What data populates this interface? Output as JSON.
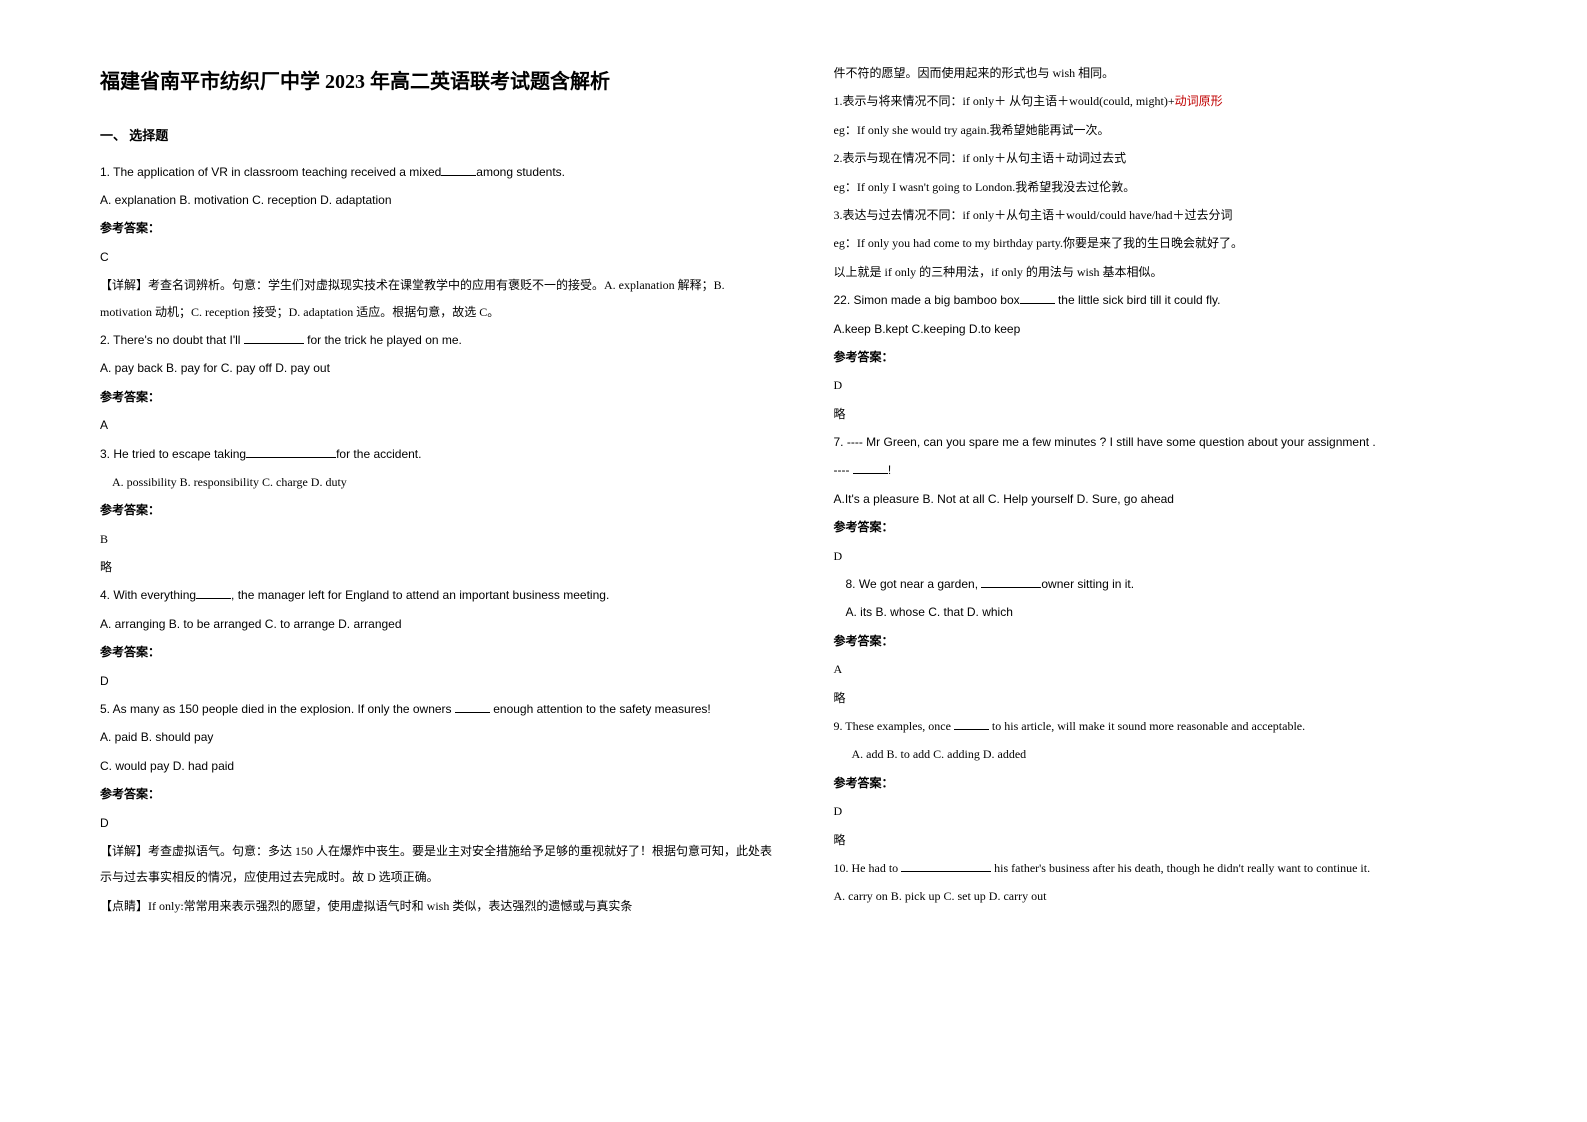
{
  "title": "福建省南平市纺织厂中学 2023 年高二英语联考试题含解析",
  "sectionHead": "一、 选择题",
  "left": {
    "q1": {
      "stem_pre": "1. The application of VR in classroom teaching received a mixed",
      "stem_post": "among students.",
      "opts": "A. explanation    B. motivation    C. reception    D. adaptation",
      "ansLabel": "参考答案：",
      "ans": "C",
      "expl": "【详解】考查名词辨析。句意：学生们对虚拟现实技术在课堂教学中的应用有褒贬不一的接受。A. explanation 解释；B. motivation 动机；C. reception 接受；D. adaptation 适应。根据句意，故选 C。"
    },
    "q2": {
      "stem_pre": "2. There's no doubt that I'll ",
      "stem_post": " for the trick he played on me.",
      "opts": "A. pay back    B. pay for  C. pay off  D. pay out",
      "ansLabel": "参考答案：",
      "ans": "A"
    },
    "q3": {
      "stem_pre": "3. He tried to escape taking",
      "stem_post": "for the accident.",
      "opts": "A. possibility    B. responsibility    C. charge    D. duty",
      "ansLabel": "参考答案：",
      "ans": "B",
      "omit": "略"
    },
    "q4": {
      "stem_pre": "4. With everything",
      "stem_post": ", the manager left for England to attend an important business meeting.",
      "opts": "A. arranging        B. to be arranged         C. to arrange                D. arranged",
      "ansLabel": "参考答案：",
      "ans": "D"
    },
    "q5": {
      "stem_pre": "5. As many as 150 people died in the explosion. If only the owners ",
      "stem_post": " enough attention to the safety measures!",
      "optsA": "A. paid    B. should pay",
      "optsB": "C. would pay    D. had paid",
      "ansLabel": "参考答案：",
      "ans": "D",
      "expl1": "【详解】考查虚拟语气。句意：多达 150 人在爆炸中丧生。要是业主对安全措施给予足够的重视就好了！根据句意可知，此处表示与过去事实相反的情况，应使用过去完成时。故 D 选项正确。",
      "expl2": "【点睛】If only:常常用来表示强烈的愿望，使用虚拟语气时和 wish 类似，表达强烈的遗憾或与真实条"
    }
  },
  "right": {
    "cont": {
      "line1": "件不符的愿望。因而使用起来的形式也与 wish 相同。",
      "line2a": "1.表示与将来情况不同：if only＋ 从句主语＋would(could, might)+",
      "line2b": "动词原形",
      "line3": "eg：If only she would try again.我希望她能再试一次。",
      "line4": "2.表示与现在情况不同：if only＋从句主语＋动词过去式",
      "line5": "eg：If only I wasn't going to London.我希望我没去过伦敦。",
      "line6": "3.表达与过去情况不同：if only＋从句主语＋would/could have/had＋过去分词",
      "line7": "eg：If only you had come to my birthday party.你要是来了我的生日晚会就好了。",
      "line8": "以上就是 if only 的三种用法，if only 的用法与 wish 基本相似。"
    },
    "q22": {
      "stem_pre": "22. Simon made a big bamboo box",
      "stem_post": " the little sick bird till it could fly.",
      "opts": "A.keep       B.kept       C.keeping      D.to keep",
      "ansLabel": "参考答案：",
      "ans": "D",
      "omit": "略"
    },
    "q7": {
      "stem": "7. ---- Mr Green, can you spare me a few minutes ? I still have some question about your assignment .",
      "stem2a": "---- ",
      "stem2b": "!",
      "opts": "A.It's a pleasure    B. Not at all    C. Help yourself     D. Sure, go ahead",
      "ansLabel": "参考答案：",
      "ans": "D"
    },
    "q8": {
      "stem_pre": "8. We got near a garden, ",
      "stem_post": "owner sitting in it.",
      "opts": "A. its      B. whose       C. that       D. which",
      "ansLabel": "参考答案：",
      "ans": "A",
      "omit": "略"
    },
    "q9": {
      "stem_pre": "9. These examples, once ",
      "stem_post": " to his article, will make it sound more reasonable and acceptable.",
      "opts": "A. add                          B. to add                   C. adding                              D. added",
      "ansLabel": "参考答案：",
      "ans": "D",
      "omit": "略"
    },
    "q10": {
      "stem_pre": "10. He had to ",
      "stem_post": " his father's business after his death, though he didn't really want to continue it.",
      "opts": "A. carry on     B. pick up     C. set up        D. carry out"
    }
  }
}
